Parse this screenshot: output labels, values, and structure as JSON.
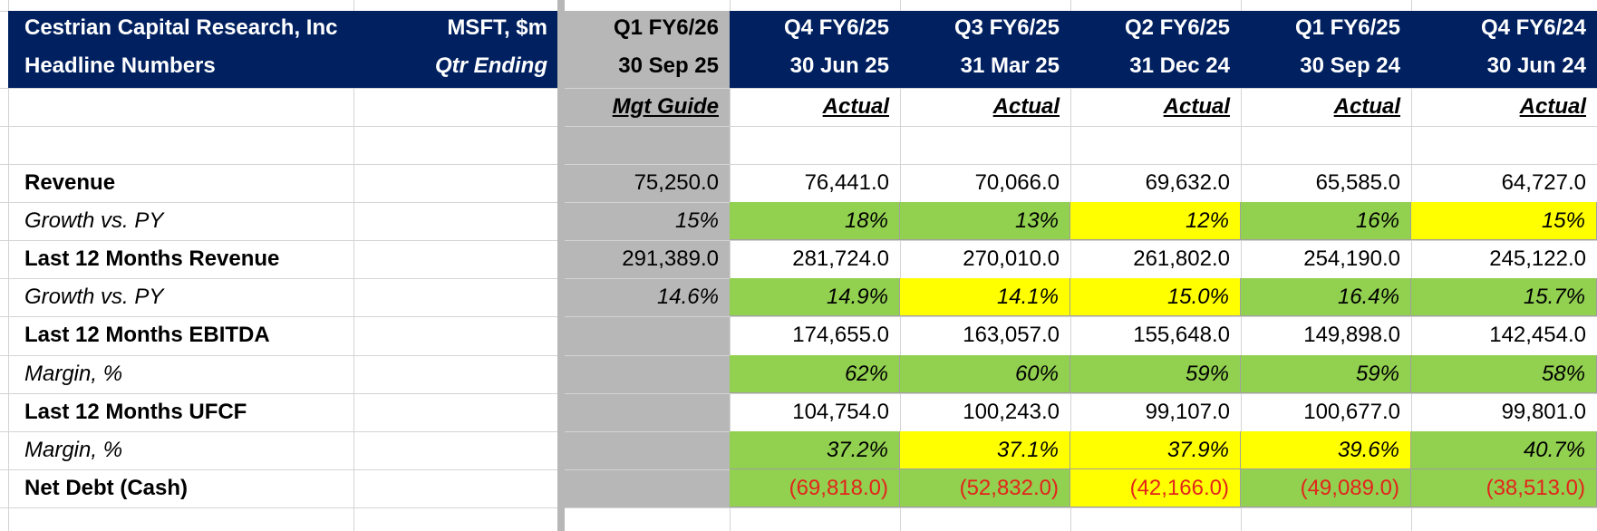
{
  "header": {
    "company": "Cestrian Capital Research, Inc",
    "subtitle": "Headline Numbers",
    "ticker_units": "MSFT, $m",
    "qtr_ending_label": "Qtr Ending"
  },
  "columns": [
    {
      "period": "Q1 FY6/26",
      "date": "30 Sep 25",
      "basis": "Mgt Guide"
    },
    {
      "period": "Q4 FY6/25",
      "date": "30 Jun 25",
      "basis": "Actual"
    },
    {
      "period": "Q3 FY6/25",
      "date": "31 Mar 25",
      "basis": "Actual"
    },
    {
      "period": "Q2 FY6/25",
      "date": "31 Dec 24",
      "basis": "Actual"
    },
    {
      "period": "Q1 FY6/25",
      "date": "30 Sep 24",
      "basis": "Actual"
    },
    {
      "period": "Q4 FY6/24",
      "date": "30 Jun 24",
      "basis": "Actual"
    }
  ],
  "rows": [
    {
      "label": "Revenue",
      "style": "bold",
      "values": [
        "75,250.0",
        "76,441.0",
        "70,066.0",
        "69,632.0",
        "65,585.0",
        "64,727.0"
      ],
      "fills": [
        "",
        "",
        "",
        "",
        "",
        ""
      ]
    },
    {
      "label": "Growth vs. PY",
      "style": "italic",
      "values": [
        "15%",
        "18%",
        "13%",
        "12%",
        "16%",
        "15%"
      ],
      "fills": [
        "",
        "#92d050",
        "#92d050",
        "#ffff00",
        "#92d050",
        "#ffff00"
      ]
    },
    {
      "label": "Last 12 Months Revenue",
      "style": "bold",
      "values": [
        "291,389.0",
        "281,724.0",
        "270,010.0",
        "261,802.0",
        "254,190.0",
        "245,122.0"
      ],
      "fills": [
        "",
        "",
        "",
        "",
        "",
        ""
      ]
    },
    {
      "label": "Growth vs. PY",
      "style": "italic",
      "values": [
        "14.6%",
        "14.9%",
        "14.1%",
        "15.0%",
        "16.4%",
        "15.7%"
      ],
      "fills": [
        "",
        "#92d050",
        "#ffff00",
        "#ffff00",
        "#92d050",
        "#92d050"
      ]
    },
    {
      "label": "Last 12 Months EBITDA",
      "style": "bold",
      "values": [
        "",
        "174,655.0",
        "163,057.0",
        "155,648.0",
        "149,898.0",
        "142,454.0"
      ],
      "fills": [
        "",
        "",
        "",
        "",
        "",
        ""
      ]
    },
    {
      "label": "Margin, %",
      "style": "italic",
      "values": [
        "",
        "62%",
        "60%",
        "59%",
        "59%",
        "58%"
      ],
      "fills": [
        "",
        "#92d050",
        "#92d050",
        "#92d050",
        "#92d050",
        "#92d050"
      ]
    },
    {
      "label": "Last 12 Months UFCF",
      "style": "bold",
      "values": [
        "",
        "104,754.0",
        "100,243.0",
        "99,107.0",
        "100,677.0",
        "99,801.0"
      ],
      "fills": [
        "",
        "",
        "",
        "",
        "",
        ""
      ]
    },
    {
      "label": "Margin, %",
      "style": "italic",
      "values": [
        "",
        "37.2%",
        "37.1%",
        "37.9%",
        "39.6%",
        "40.7%"
      ],
      "fills": [
        "",
        "#92d050",
        "#ffff00",
        "#ffff00",
        "#ffff00",
        "#92d050"
      ]
    },
    {
      "label": "Net Debt (Cash)",
      "style": "bold",
      "values": [
        "",
        "(69,818.0)",
        "(52,832.0)",
        "(42,166.0)",
        "(49,089.0)",
        "(38,513.0)"
      ],
      "fills": [
        "",
        "#92d050",
        "#92d050",
        "#ffff00",
        "#92d050",
        "#92d050"
      ],
      "negative": true
    }
  ],
  "colors": {
    "header_navy": "#002060",
    "guide_gray": "#b7b7b7",
    "green": "#92d050",
    "yellow": "#ffff00",
    "negative_red": "#e3241b"
  }
}
